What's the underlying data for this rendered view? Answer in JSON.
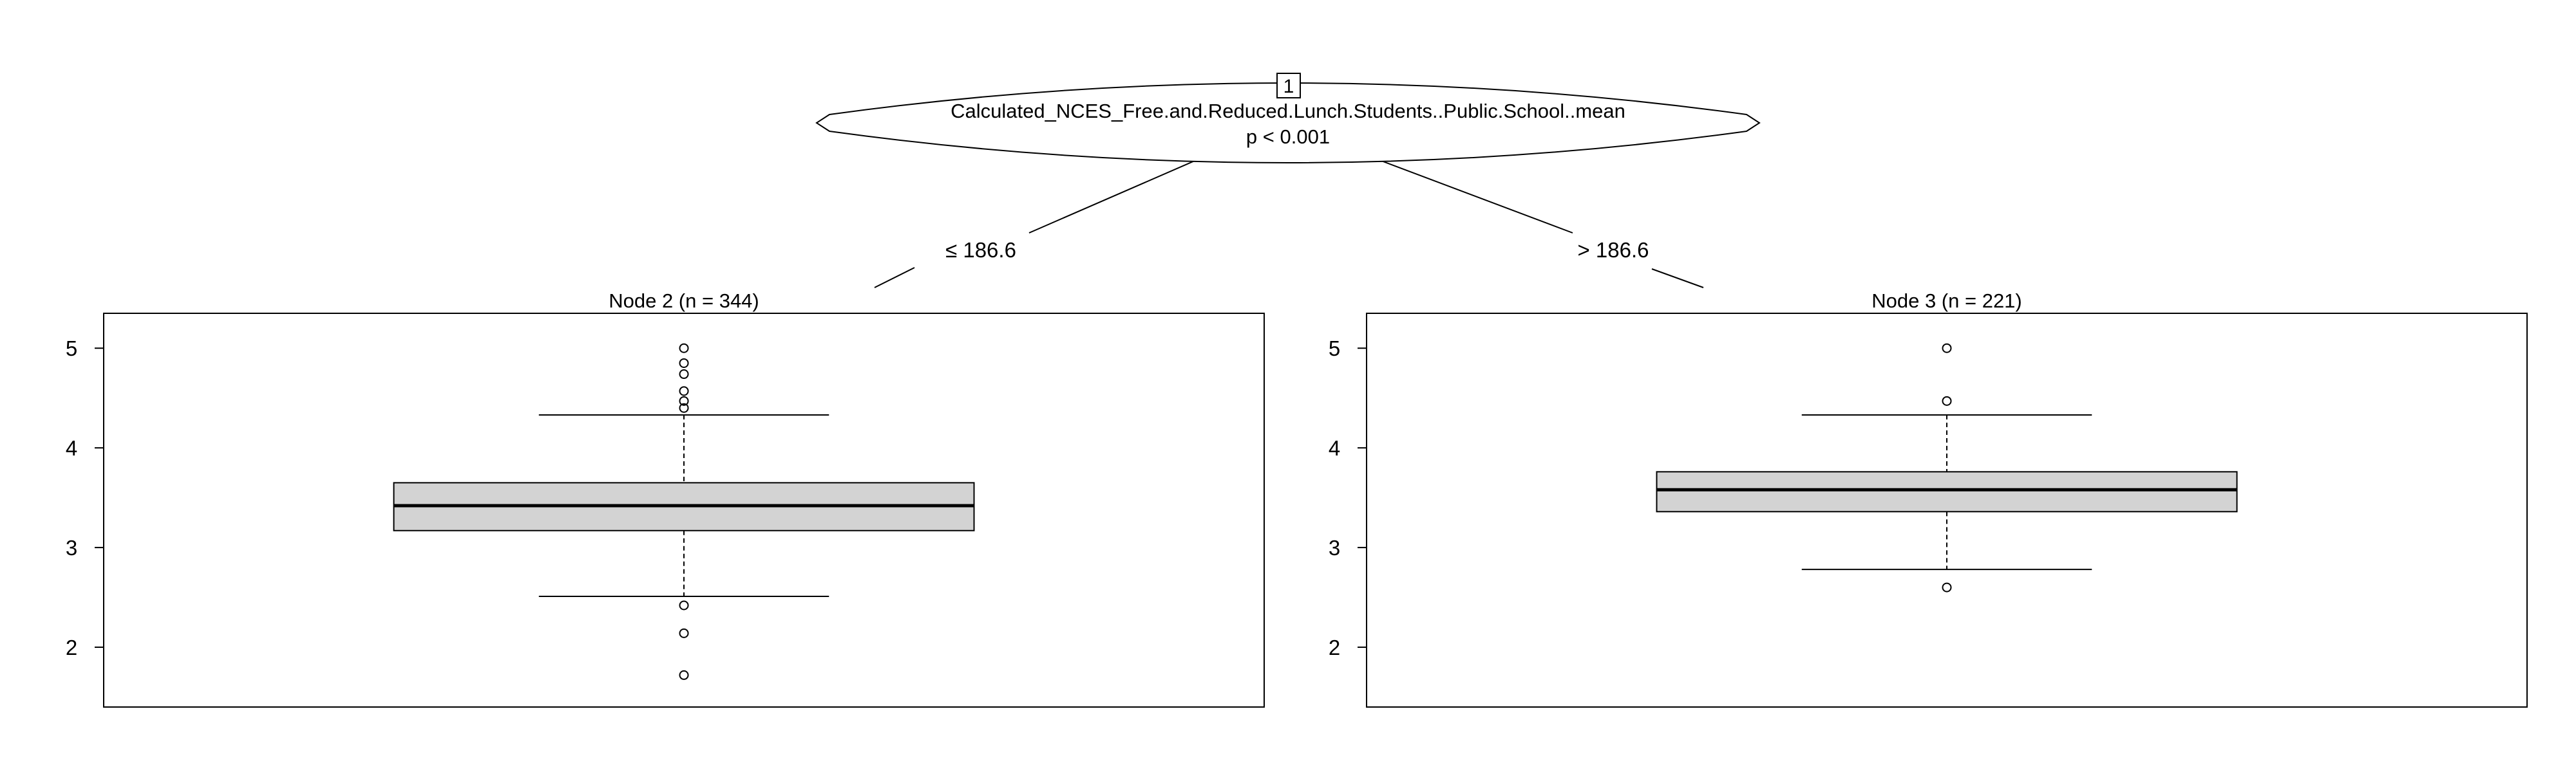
{
  "tree": {
    "root": {
      "id": "1",
      "variable": "Calculated_NCES_Free.and.Reduced.Lunch.Students..Public.School..mean",
      "p_value": "p < 0.001"
    },
    "edges": [
      {
        "label": "≤ 186.6"
      },
      {
        "label": "> 186.6"
      }
    ]
  },
  "chart_data": [
    {
      "type": "boxplot",
      "title": "Node 2 (n = 344)",
      "ylim": [
        1.4,
        5.35
      ],
      "yticks": [
        2,
        3,
        4,
        5
      ],
      "tick_labels": [
        "2",
        "3",
        "4",
        "5"
      ],
      "box": {
        "whisker_low": 2.51,
        "q1": 3.17,
        "median": 3.42,
        "q3": 3.65,
        "whisker_high": 4.33
      },
      "outliers": [
        5.0,
        4.85,
        4.74,
        4.57,
        4.47,
        4.4,
        2.42,
        2.14,
        1.72
      ],
      "fill": "#d3d3d3"
    },
    {
      "type": "boxplot",
      "title": "Node 3 (n = 221)",
      "ylim": [
        1.4,
        5.35
      ],
      "yticks": [
        2,
        3,
        4,
        5
      ],
      "tick_labels": [
        "2",
        "3",
        "4",
        "5"
      ],
      "box": {
        "whisker_low": 2.78,
        "q1": 3.36,
        "median": 3.58,
        "q3": 3.76,
        "whisker_high": 4.33
      },
      "outliers": [
        5.0,
        4.47,
        2.6
      ],
      "fill": "#d3d3d3"
    }
  ]
}
